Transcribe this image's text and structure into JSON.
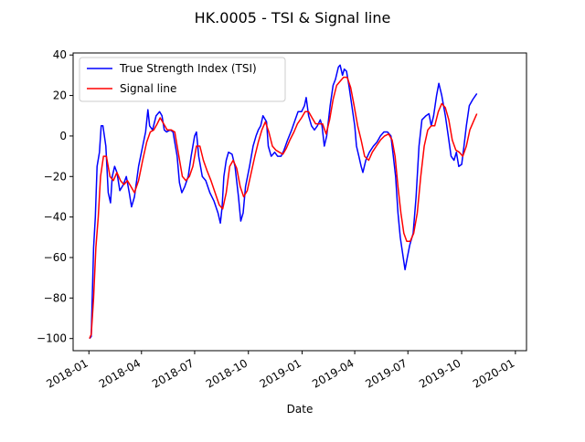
{
  "chart_data": {
    "type": "line",
    "title": "HK.0005 - TSI & Signal line",
    "xlabel": "Date",
    "ylabel": "",
    "x_ticks": [
      "2018-01",
      "2018-04",
      "2018-07",
      "2018-10",
      "2019-01",
      "2019-04",
      "2019-07",
      "2019-10",
      "2020-01"
    ],
    "y_ticks": [
      40,
      20,
      0,
      -20,
      -40,
      -60,
      -80,
      -100
    ],
    "xlim": [
      "2017-12-05",
      "2020-01-20"
    ],
    "ylim": [
      -106,
      41
    ],
    "grid": false,
    "legend_position": "top-left",
    "series": [
      {
        "name": "True Strength Index (TSI)",
        "color": "#0000ff",
        "points": [
          [
            "2018-01-02",
            -100
          ],
          [
            "2018-01-05",
            -99
          ],
          [
            "2018-01-09",
            -55
          ],
          [
            "2018-01-12",
            -40
          ],
          [
            "2018-01-15",
            -15
          ],
          [
            "2018-01-19",
            -8
          ],
          [
            "2018-01-22",
            5
          ],
          [
            "2018-01-25",
            5
          ],
          [
            "2018-01-30",
            -5
          ],
          [
            "2018-02-03",
            -28
          ],
          [
            "2018-02-07",
            -33
          ],
          [
            "2018-02-10",
            -20
          ],
          [
            "2018-02-14",
            -15
          ],
          [
            "2018-02-18",
            -18
          ],
          [
            "2018-02-23",
            -27
          ],
          [
            "2018-03-01",
            -24
          ],
          [
            "2018-03-06",
            -20
          ],
          [
            "2018-03-11",
            -28
          ],
          [
            "2018-03-15",
            -35
          ],
          [
            "2018-03-20",
            -30
          ],
          [
            "2018-03-27",
            -15
          ],
          [
            "2018-04-03",
            -5
          ],
          [
            "2018-04-08",
            2
          ],
          [
            "2018-04-12",
            13
          ],
          [
            "2018-04-15",
            5
          ],
          [
            "2018-04-20",
            3
          ],
          [
            "2018-04-26",
            10
          ],
          [
            "2018-05-02",
            12
          ],
          [
            "2018-05-06",
            10
          ],
          [
            "2018-05-10",
            3
          ],
          [
            "2018-05-14",
            2
          ],
          [
            "2018-05-20",
            3
          ],
          [
            "2018-05-25",
            2
          ],
          [
            "2018-06-01",
            -10
          ],
          [
            "2018-06-05",
            -23
          ],
          [
            "2018-06-09",
            -28
          ],
          [
            "2018-06-14",
            -25
          ],
          [
            "2018-06-20",
            -20
          ],
          [
            "2018-06-25",
            -10
          ],
          [
            "2018-07-01",
            0
          ],
          [
            "2018-07-04",
            2
          ],
          [
            "2018-07-08",
            -10
          ],
          [
            "2018-07-14",
            -20
          ],
          [
            "2018-07-20",
            -22
          ],
          [
            "2018-07-27",
            -28
          ],
          [
            "2018-08-03",
            -32
          ],
          [
            "2018-08-10",
            -38
          ],
          [
            "2018-08-14",
            -43
          ],
          [
            "2018-08-17",
            -35
          ],
          [
            "2018-08-20",
            -20
          ],
          [
            "2018-08-24",
            -12
          ],
          [
            "2018-08-28",
            -8
          ],
          [
            "2018-09-03",
            -9
          ],
          [
            "2018-09-08",
            -15
          ],
          [
            "2018-09-14",
            -30
          ],
          [
            "2018-09-18",
            -42
          ],
          [
            "2018-09-22",
            -38
          ],
          [
            "2018-09-26",
            -25
          ],
          [
            "2018-10-03",
            -15
          ],
          [
            "2018-10-09",
            -5
          ],
          [
            "2018-10-14",
            0
          ],
          [
            "2018-10-18",
            3
          ],
          [
            "2018-10-22",
            5
          ],
          [
            "2018-10-26",
            10
          ],
          [
            "2018-11-01",
            7
          ],
          [
            "2018-11-04",
            -5
          ],
          [
            "2018-11-09",
            -10
          ],
          [
            "2018-11-15",
            -8
          ],
          [
            "2018-11-20",
            -10
          ],
          [
            "2018-11-26",
            -10
          ],
          [
            "2018-12-01",
            -7
          ],
          [
            "2018-12-07",
            -2
          ],
          [
            "2018-12-14",
            3
          ],
          [
            "2018-12-20",
            8
          ],
          [
            "2018-12-25",
            12
          ],
          [
            "2018-12-31",
            12
          ],
          [
            "2019-01-05",
            15
          ],
          [
            "2019-01-08",
            19
          ],
          [
            "2019-01-12",
            10
          ],
          [
            "2019-01-17",
            5
          ],
          [
            "2019-01-22",
            3
          ],
          [
            "2019-01-27",
            5
          ],
          [
            "2019-02-01",
            8
          ],
          [
            "2019-02-04",
            5
          ],
          [
            "2019-02-08",
            -5
          ],
          [
            "2019-02-12",
            0
          ],
          [
            "2019-02-18",
            15
          ],
          [
            "2019-02-23",
            25
          ],
          [
            "2019-02-27",
            28
          ],
          [
            "2019-03-04",
            34
          ],
          [
            "2019-03-07",
            35
          ],
          [
            "2019-03-11",
            30
          ],
          [
            "2019-03-14",
            33
          ],
          [
            "2019-03-18",
            32
          ],
          [
            "2019-03-22",
            25
          ],
          [
            "2019-03-27",
            15
          ],
          [
            "2019-04-01",
            5
          ],
          [
            "2019-04-04",
            -5
          ],
          [
            "2019-04-08",
            -10
          ],
          [
            "2019-04-12",
            -15
          ],
          [
            "2019-04-15",
            -18
          ],
          [
            "2019-04-20",
            -12
          ],
          [
            "2019-04-26",
            -8
          ],
          [
            "2019-05-03",
            -5
          ],
          [
            "2019-05-09",
            -3
          ],
          [
            "2019-05-15",
            0
          ],
          [
            "2019-05-21",
            2
          ],
          [
            "2019-05-27",
            2
          ],
          [
            "2019-06-02",
            0
          ],
          [
            "2019-06-06",
            -10
          ],
          [
            "2019-06-10",
            -20
          ],
          [
            "2019-06-14",
            -38
          ],
          [
            "2019-06-18",
            -50
          ],
          [
            "2019-06-22",
            -58
          ],
          [
            "2019-06-26",
            -66
          ],
          [
            "2019-06-30",
            -60
          ],
          [
            "2019-07-04",
            -54
          ],
          [
            "2019-07-10",
            -48
          ],
          [
            "2019-07-15",
            -30
          ],
          [
            "2019-07-20",
            -5
          ],
          [
            "2019-07-25",
            8
          ],
          [
            "2019-08-01",
            10
          ],
          [
            "2019-08-06",
            11
          ],
          [
            "2019-08-10",
            5
          ],
          [
            "2019-08-14",
            10
          ],
          [
            "2019-08-19",
            20
          ],
          [
            "2019-08-23",
            26
          ],
          [
            "2019-08-28",
            20
          ],
          [
            "2019-09-03",
            10
          ],
          [
            "2019-09-08",
            0
          ],
          [
            "2019-09-13",
            -10
          ],
          [
            "2019-09-18",
            -12
          ],
          [
            "2019-09-22",
            -8
          ],
          [
            "2019-09-26",
            -15
          ],
          [
            "2019-10-01",
            -14
          ],
          [
            "2019-10-05",
            -5
          ],
          [
            "2019-10-09",
            5
          ],
          [
            "2019-10-14",
            15
          ],
          [
            "2019-10-20",
            18
          ],
          [
            "2019-10-27",
            21
          ]
        ]
      },
      {
        "name": "Signal line",
        "color": "#ff0000",
        "points": [
          [
            "2018-01-02",
            -100
          ],
          [
            "2018-01-05",
            -98
          ],
          [
            "2018-01-09",
            -80
          ],
          [
            "2018-01-13",
            -55
          ],
          [
            "2018-01-17",
            -40
          ],
          [
            "2018-01-21",
            -20
          ],
          [
            "2018-01-26",
            -10
          ],
          [
            "2018-01-31",
            -10
          ],
          [
            "2018-02-06",
            -20
          ],
          [
            "2018-02-12",
            -22
          ],
          [
            "2018-02-18",
            -18
          ],
          [
            "2018-02-24",
            -22
          ],
          [
            "2018-03-02",
            -24
          ],
          [
            "2018-03-08",
            -22
          ],
          [
            "2018-03-14",
            -25
          ],
          [
            "2018-03-20",
            -28
          ],
          [
            "2018-03-27",
            -22
          ],
          [
            "2018-04-03",
            -12
          ],
          [
            "2018-04-10",
            -3
          ],
          [
            "2018-04-16",
            2
          ],
          [
            "2018-04-22",
            3
          ],
          [
            "2018-04-28",
            6
          ],
          [
            "2018-05-03",
            9
          ],
          [
            "2018-05-09",
            6
          ],
          [
            "2018-05-15",
            3
          ],
          [
            "2018-05-22",
            3
          ],
          [
            "2018-05-28",
            2
          ],
          [
            "2018-06-04",
            -10
          ],
          [
            "2018-06-10",
            -20
          ],
          [
            "2018-06-16",
            -22
          ],
          [
            "2018-06-22",
            -20
          ],
          [
            "2018-06-28",
            -15
          ],
          [
            "2018-07-04",
            -5
          ],
          [
            "2018-07-10",
            -5
          ],
          [
            "2018-07-16",
            -12
          ],
          [
            "2018-07-22",
            -17
          ],
          [
            "2018-07-29",
            -22
          ],
          [
            "2018-08-05",
            -28
          ],
          [
            "2018-08-12",
            -34
          ],
          [
            "2018-08-18",
            -36
          ],
          [
            "2018-08-24",
            -28
          ],
          [
            "2018-08-30",
            -15
          ],
          [
            "2018-09-05",
            -12
          ],
          [
            "2018-09-11",
            -16
          ],
          [
            "2018-09-17",
            -25
          ],
          [
            "2018-09-23",
            -30
          ],
          [
            "2018-09-29",
            -27
          ],
          [
            "2018-10-06",
            -18
          ],
          [
            "2018-10-12",
            -10
          ],
          [
            "2018-10-18",
            -3
          ],
          [
            "2018-10-24",
            3
          ],
          [
            "2018-10-30",
            7
          ],
          [
            "2018-11-05",
            2
          ],
          [
            "2018-11-11",
            -5
          ],
          [
            "2018-11-17",
            -7
          ],
          [
            "2018-11-23",
            -8
          ],
          [
            "2018-11-29",
            -9
          ],
          [
            "2018-12-05",
            -6
          ],
          [
            "2018-12-11",
            -2
          ],
          [
            "2018-12-18",
            2
          ],
          [
            "2018-12-24",
            6
          ],
          [
            "2018-12-31",
            9
          ],
          [
            "2019-01-06",
            12
          ],
          [
            "2019-01-12",
            12
          ],
          [
            "2019-01-18",
            9
          ],
          [
            "2019-01-24",
            6
          ],
          [
            "2019-01-30",
            6
          ],
          [
            "2019-02-05",
            6
          ],
          [
            "2019-02-11",
            1
          ],
          [
            "2019-02-17",
            8
          ],
          [
            "2019-02-23",
            18
          ],
          [
            "2019-03-01",
            25
          ],
          [
            "2019-03-07",
            27
          ],
          [
            "2019-03-13",
            29
          ],
          [
            "2019-03-19",
            29
          ],
          [
            "2019-03-25",
            24
          ],
          [
            "2019-03-31",
            15
          ],
          [
            "2019-04-06",
            5
          ],
          [
            "2019-04-12",
            -2
          ],
          [
            "2019-04-18",
            -10
          ],
          [
            "2019-04-25",
            -12
          ],
          [
            "2019-05-01",
            -8
          ],
          [
            "2019-05-08",
            -5
          ],
          [
            "2019-05-15",
            -2
          ],
          [
            "2019-05-22",
            0
          ],
          [
            "2019-05-29",
            1
          ],
          [
            "2019-06-04",
            -2
          ],
          [
            "2019-06-09",
            -10
          ],
          [
            "2019-06-14",
            -25
          ],
          [
            "2019-06-19",
            -38
          ],
          [
            "2019-06-24",
            -48
          ],
          [
            "2019-06-29",
            -52
          ],
          [
            "2019-07-05",
            -52
          ],
          [
            "2019-07-11",
            -48
          ],
          [
            "2019-07-17",
            -38
          ],
          [
            "2019-07-23",
            -20
          ],
          [
            "2019-07-29",
            -5
          ],
          [
            "2019-08-04",
            3
          ],
          [
            "2019-08-10",
            5
          ],
          [
            "2019-08-16",
            5
          ],
          [
            "2019-08-22",
            12
          ],
          [
            "2019-08-28",
            16
          ],
          [
            "2019-09-03",
            14
          ],
          [
            "2019-09-09",
            8
          ],
          [
            "2019-09-15",
            -2
          ],
          [
            "2019-09-21",
            -7
          ],
          [
            "2019-09-27",
            -8
          ],
          [
            "2019-10-03",
            -10
          ],
          [
            "2019-10-09",
            -5
          ],
          [
            "2019-10-15",
            3
          ],
          [
            "2019-10-21",
            7
          ],
          [
            "2019-10-27",
            11
          ]
        ]
      }
    ]
  }
}
